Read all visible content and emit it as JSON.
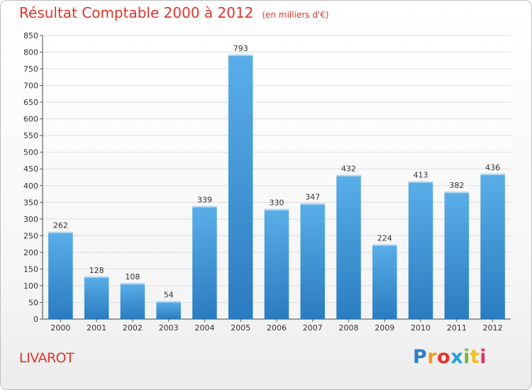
{
  "header": {
    "title": "Résultat Comptable 2000 à 2012",
    "subtitle": "(en milliers d'€)"
  },
  "commune": "LIVAROT",
  "logo": {
    "letters": [
      "P",
      "r",
      "o",
      "x",
      "i",
      "t",
      "i"
    ],
    "colors": [
      "#2e7fc7",
      "#f39a1e",
      "#e0352b",
      "#27a0d8",
      "#7ab648",
      "#f3c11e",
      "#d9386e"
    ]
  },
  "chart_data": {
    "type": "bar",
    "title": "Résultat Comptable 2000 à 2012",
    "subtitle": "(en milliers d'€)",
    "categories": [
      "2000",
      "2001",
      "2002",
      "2003",
      "2004",
      "2005",
      "2006",
      "2007",
      "2008",
      "2009",
      "2010",
      "2011",
      "2012"
    ],
    "values": [
      262,
      128,
      108,
      54,
      339,
      793,
      330,
      347,
      432,
      224,
      413,
      382,
      436
    ],
    "ylim": [
      0,
      850
    ],
    "yticks": [
      0,
      50,
      100,
      150,
      200,
      250,
      300,
      350,
      400,
      450,
      500,
      550,
      600,
      650,
      700,
      750,
      800,
      850
    ],
    "xlabel": "",
    "ylabel": "",
    "grid": true,
    "bar_color_top": "#5aaee8",
    "bar_color_bottom": "#2a7cc0"
  }
}
